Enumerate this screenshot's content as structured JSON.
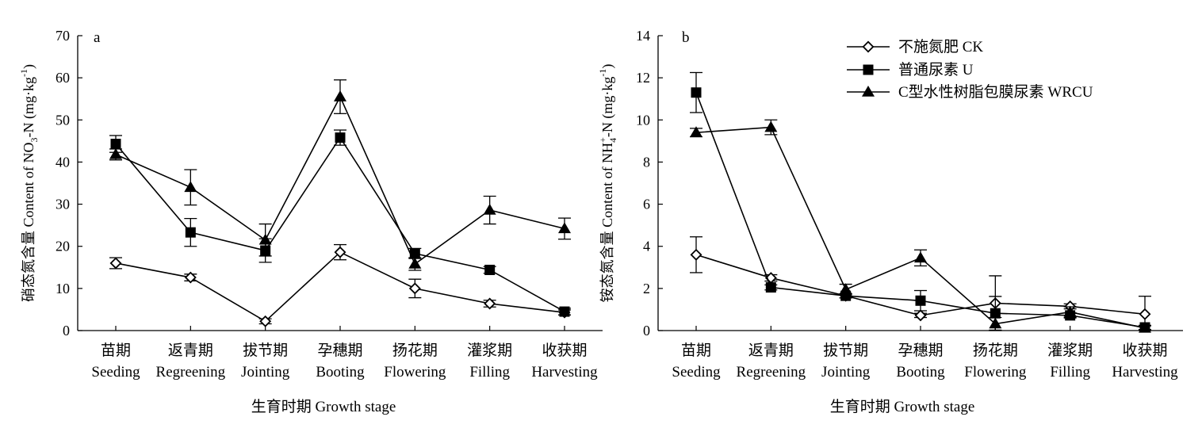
{
  "chart_data": [
    {
      "type": "line",
      "panel_label": "a",
      "ylabel": "硝态氮含量 Content of NO3-N (mg·kg-1)",
      "ylabel_parts": {
        "pre": "硝态氮含量 Content of NO",
        "sub": "3",
        "mid": "-N (mg·kg",
        "sup": "-1",
        "post": ")"
      },
      "xlabel": "生育时期 Growth stage",
      "categories": [
        "苗期",
        "返青期",
        "拔节期",
        "孕穗期",
        "扬花期",
        "灌浆期",
        "收获期"
      ],
      "categories_en": [
        "Seeding",
        "Regreening",
        "Jointing",
        "Booting",
        "Flowering",
        "Filling",
        "Harvesting"
      ],
      "ylim": [
        0,
        70
      ],
      "yticks": [
        "0",
        "10",
        "20",
        "30",
        "40",
        "50",
        "60",
        "70"
      ],
      "series": [
        {
          "name": "不施氮肥 CK",
          "marker": "diamond",
          "values": [
            16.0,
            12.6,
            2.2,
            18.6,
            10.0,
            6.4,
            4.3
          ],
          "errors": [
            1.3,
            0.8,
            0.6,
            1.8,
            2.2,
            0.8,
            0.6
          ]
        },
        {
          "name": "普通尿素 U",
          "marker": "square",
          "values": [
            44.3,
            23.3,
            19.0,
            45.8,
            18.3,
            14.4,
            4.5
          ],
          "errors": [
            2.0,
            3.3,
            2.8,
            1.8,
            1.2,
            0.8,
            0.8
          ]
        },
        {
          "name": "C型水性树脂包膜尿素 WRCU",
          "marker": "triangle",
          "values": [
            41.8,
            34.0,
            21.5,
            55.5,
            15.8,
            28.6,
            24.2
          ],
          "errors": [
            1.3,
            4.2,
            3.8,
            4.0,
            1.5,
            3.3,
            2.5
          ]
        }
      ]
    },
    {
      "type": "line",
      "panel_label": "b",
      "ylabel": "铵态氮含量 Content of NH4+-N (mg·kg-1)",
      "ylabel_parts": {
        "pre": "铵态氮含量 Content of NH",
        "sub": "4",
        "subsup": "+",
        "mid": "-N (mg·kg",
        "sup": "-1",
        "post": ")"
      },
      "xlabel": "生育时期 Growth stage",
      "categories": [
        "苗期",
        "返青期",
        "拔节期",
        "孕穗期",
        "扬花期",
        "灌浆期",
        "收获期"
      ],
      "categories_en": [
        "Seeding",
        "Regreening",
        "Jointing",
        "Booting",
        "Flowering",
        "Filling",
        "Harvesting"
      ],
      "ylim": [
        0,
        14
      ],
      "yticks": [
        "0",
        "2",
        "4",
        "6",
        "8",
        "10",
        "12",
        "14"
      ],
      "legend": {
        "position": "top-right",
        "entries": [
          "不施氮肥 CK",
          "普通尿素 U",
          "C型水性树脂包膜尿素 WRCU"
        ]
      },
      "series": [
        {
          "name": "不施氮肥 CK",
          "marker": "diamond",
          "values": [
            3.6,
            2.5,
            1.65,
            0.72,
            1.3,
            1.15,
            0.78
          ],
          "errors": [
            0.85,
            0.15,
            0.1,
            0.1,
            1.3,
            0.12,
            0.85
          ]
        },
        {
          "name": "普通尿素 U",
          "marker": "square",
          "values": [
            11.3,
            2.05,
            1.65,
            1.42,
            0.82,
            0.72,
            0.15
          ],
          "errors": [
            0.95,
            0.12,
            0.1,
            0.48,
            0.8,
            0.12,
            0.1
          ]
        },
        {
          "name": "C型水性树脂包膜尿素 WRCU",
          "marker": "triangle",
          "values": [
            9.4,
            9.65,
            1.95,
            3.45,
            0.32,
            0.88,
            0.12
          ],
          "errors": [
            0.2,
            0.35,
            0.25,
            0.38,
            0.3,
            0.25,
            0.1
          ]
        }
      ]
    }
  ]
}
